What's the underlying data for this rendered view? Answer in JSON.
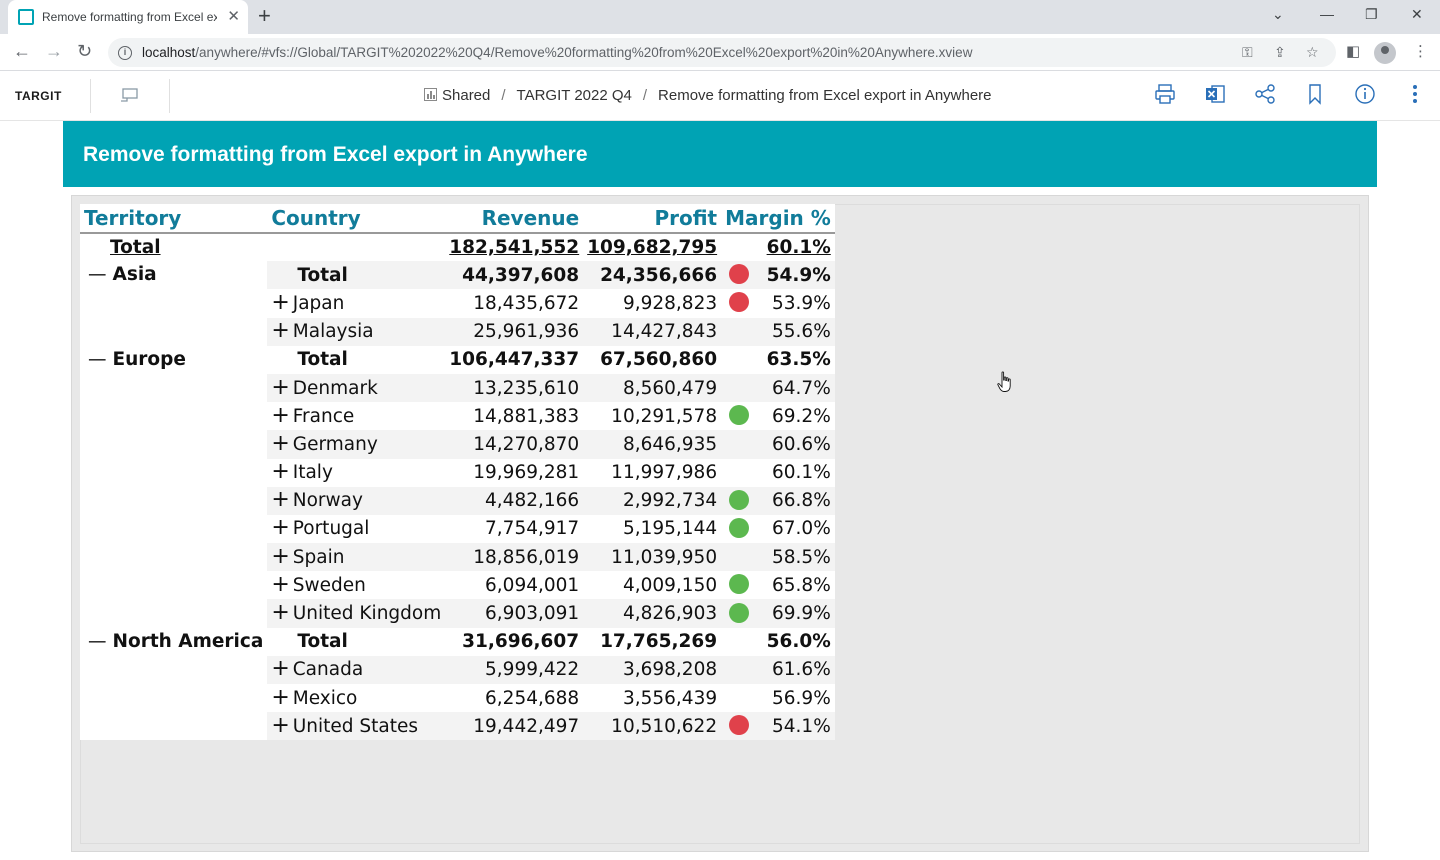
{
  "browser": {
    "tab_title": "Remove formatting from Excel export in Anywhere",
    "url_host": "localhost",
    "url_path": "/anywhere/#vfs://Global/TARGIT%202022%20Q4/Remove%20formatting%20from%20Excel%20export%20in%20Anywhere.xview"
  },
  "app": {
    "logo": "TARGIT",
    "breadcrumb": [
      "Shared",
      "TARGIT 2022 Q4",
      "Remove formatting from Excel export in Anywhere"
    ]
  },
  "report": {
    "title": "Remove formatting from Excel export in Anywhere",
    "columns": {
      "territory": "Territory",
      "country": "Country",
      "revenue": "Revenue",
      "profit": "Profit",
      "margin": "Margin %"
    },
    "grand_total": {
      "label": "Total",
      "revenue": "182,541,552",
      "profit": "109,682,795",
      "margin": "60.1%"
    },
    "groups": [
      {
        "territory": "Asia",
        "total_label": "Total",
        "revenue": "44,397,608",
        "profit": "24,356,666",
        "indicator": "red",
        "margin": "54.9%",
        "rows": [
          {
            "country": "Japan",
            "revenue": "18,435,672",
            "profit": "9,928,823",
            "indicator": "red",
            "margin": "53.9%"
          },
          {
            "country": "Malaysia",
            "revenue": "25,961,936",
            "profit": "14,427,843",
            "indicator": "",
            "margin": "55.6%"
          }
        ]
      },
      {
        "territory": "Europe",
        "total_label": "Total",
        "revenue": "106,447,337",
        "profit": "67,560,860",
        "indicator": "",
        "margin": "63.5%",
        "rows": [
          {
            "country": "Denmark",
            "revenue": "13,235,610",
            "profit": "8,560,479",
            "indicator": "",
            "margin": "64.7%"
          },
          {
            "country": "France",
            "revenue": "14,881,383",
            "profit": "10,291,578",
            "indicator": "green",
            "margin": "69.2%"
          },
          {
            "country": "Germany",
            "revenue": "14,270,870",
            "profit": "8,646,935",
            "indicator": "",
            "margin": "60.6%"
          },
          {
            "country": "Italy",
            "revenue": "19,969,281",
            "profit": "11,997,986",
            "indicator": "",
            "margin": "60.1%"
          },
          {
            "country": "Norway",
            "revenue": "4,482,166",
            "profit": "2,992,734",
            "indicator": "green",
            "margin": "66.8%"
          },
          {
            "country": "Portugal",
            "revenue": "7,754,917",
            "profit": "5,195,144",
            "indicator": "green",
            "margin": "67.0%"
          },
          {
            "country": "Spain",
            "revenue": "18,856,019",
            "profit": "11,039,950",
            "indicator": "",
            "margin": "58.5%"
          },
          {
            "country": "Sweden",
            "revenue": "6,094,001",
            "profit": "4,009,150",
            "indicator": "green",
            "margin": "65.8%"
          },
          {
            "country": "United Kingdom",
            "revenue": "6,903,091",
            "profit": "4,826,903",
            "indicator": "green",
            "margin": "69.9%"
          }
        ]
      },
      {
        "territory": "North America",
        "total_label": "Total",
        "revenue": "31,696,607",
        "profit": "17,765,269",
        "indicator": "",
        "margin": "56.0%",
        "rows": [
          {
            "country": "Canada",
            "revenue": "5,999,422",
            "profit": "3,698,208",
            "indicator": "",
            "margin": "61.6%"
          },
          {
            "country": "Mexico",
            "revenue": "6,254,688",
            "profit": "3,556,439",
            "indicator": "",
            "margin": "56.9%"
          },
          {
            "country": "United States",
            "revenue": "19,442,497",
            "profit": "10,510,622",
            "indicator": "red",
            "margin": "54.1%"
          }
        ]
      }
    ]
  },
  "colors": {
    "accent": "#00a3b4",
    "header_text": "#117c9a",
    "indicator_red": "#e0414b",
    "indicator_green": "#5cb84f"
  }
}
